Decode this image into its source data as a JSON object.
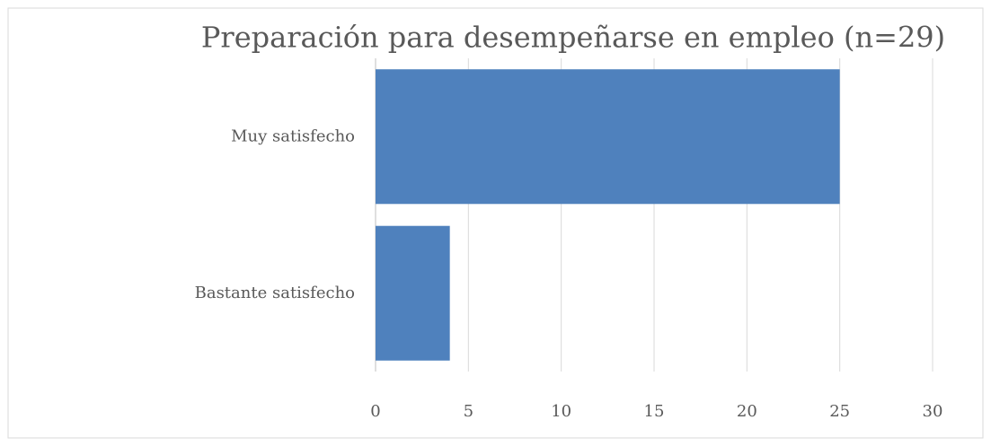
{
  "chart_data": {
    "type": "hbar",
    "title": "Preparación para desempeñarse en empleo (n=29)",
    "categories": [
      "Muy satisfecho",
      "Bastante satisfecho"
    ],
    "values": [
      25,
      4
    ],
    "color": "#4f81bd",
    "xlim": [
      0,
      30
    ],
    "xticks": [
      0,
      5,
      10,
      15,
      20,
      25,
      30
    ],
    "grid": true
  }
}
